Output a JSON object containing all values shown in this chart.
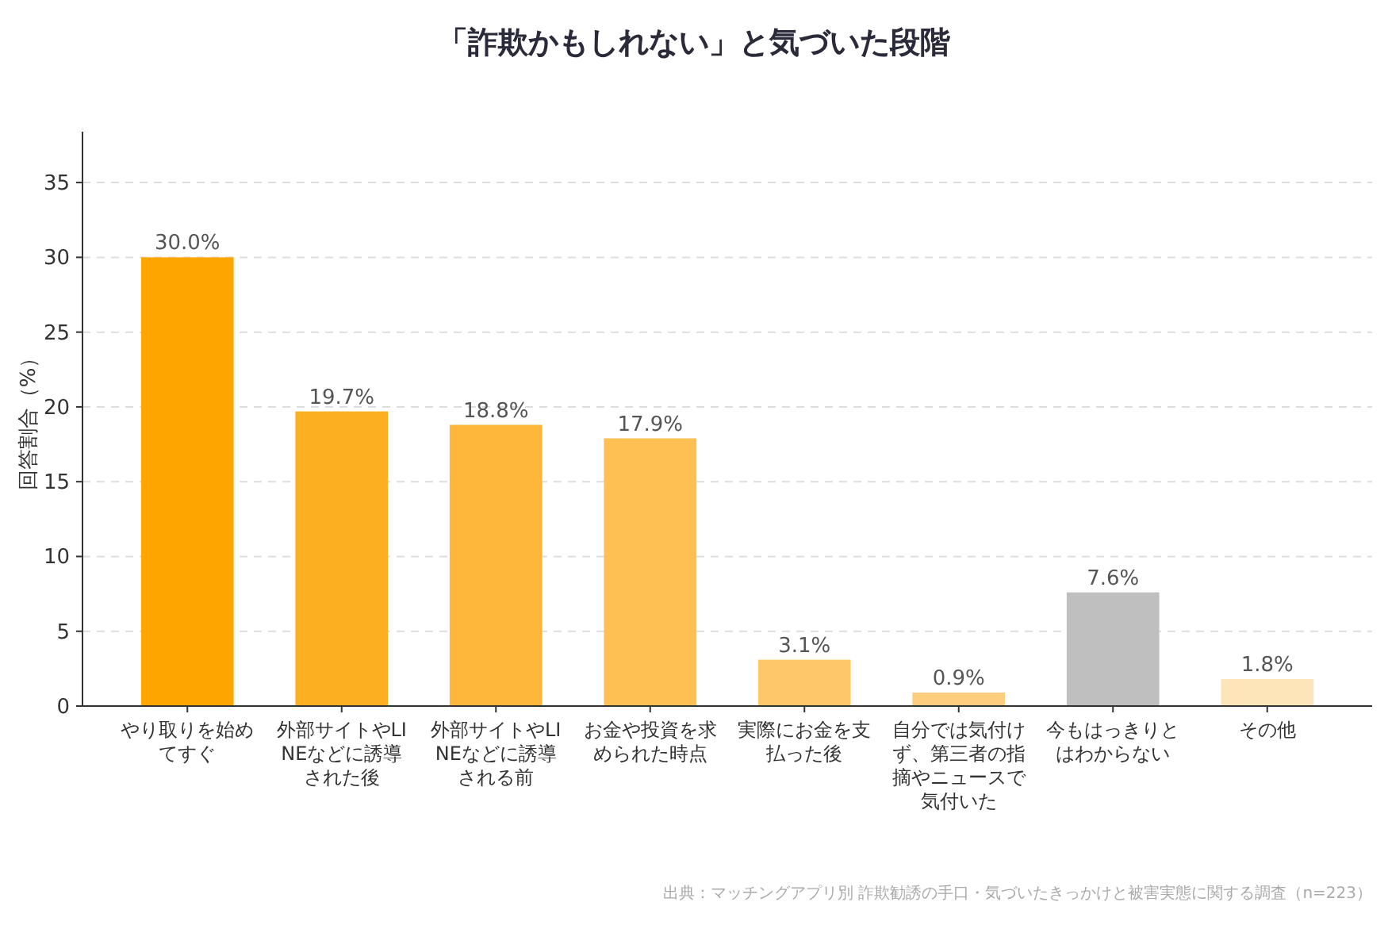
{
  "chart_data": {
    "type": "bar",
    "title": "「詐欺かもしれない」と気づいた段階",
    "ylabel": "回答割合（%）",
    "categories": [
      "やり取りを始めてすぐ",
      "外部サイトやLINEなどに誘導された後",
      "外部サイトやLINEなどに誘導される前",
      "お金や投資を求められた時点",
      "実際にお金を支払った後",
      "自分では気付けず、第三者の指摘やニュースで気付いた",
      "今もはっきりとはわからない",
      "その他"
    ],
    "values": [
      30.0,
      19.7,
      18.8,
      17.9,
      3.1,
      0.9,
      7.6,
      1.8
    ],
    "value_labels": [
      "30.0%",
      "19.7%",
      "18.8%",
      "17.9%",
      "3.1%",
      "0.9%",
      "7.6%",
      "1.8%"
    ],
    "colors": [
      "#ffa500",
      "#fdaf22",
      "#feb73a",
      "#fec052",
      "#fec86a",
      "#fece7e",
      "#bfbfbf",
      "#fee4b9"
    ],
    "ylim": [
      0,
      38.4
    ],
    "yticks": [
      0,
      5,
      10,
      15,
      20,
      25,
      30,
      35
    ],
    "grid": "y",
    "annotations": [
      "出典：マッチングアプリ別 詐欺勧誘の手口・気づいたきっかけと被害実態に関する調査（n=223）"
    ]
  }
}
